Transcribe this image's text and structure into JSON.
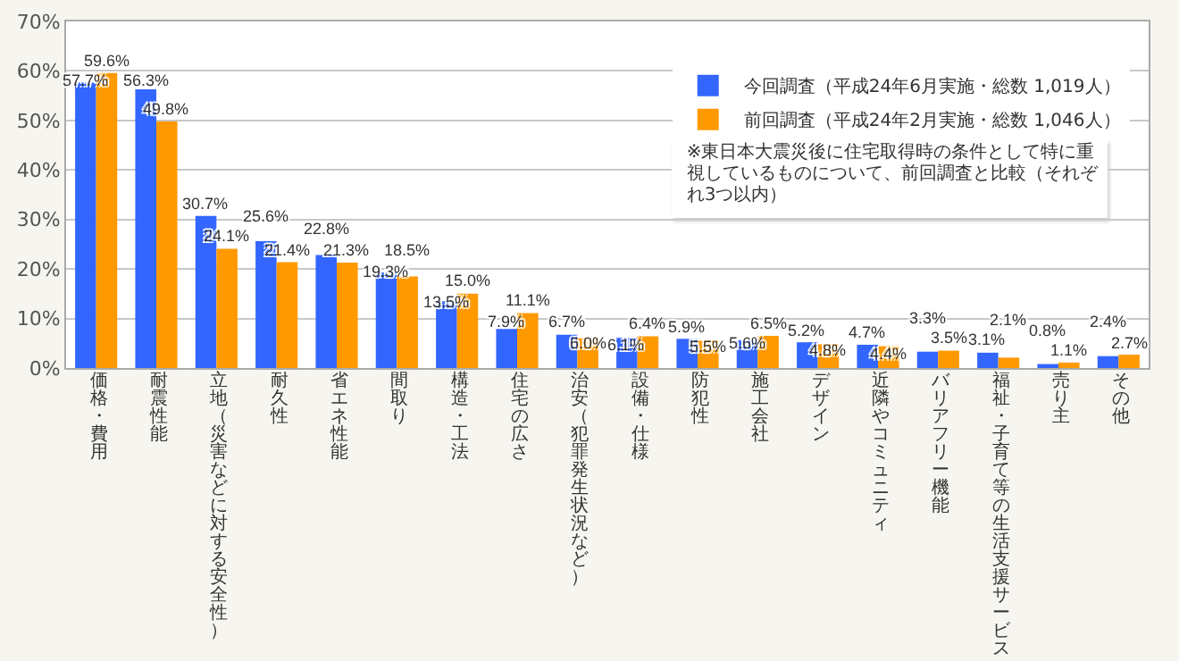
{
  "chart_data": {
    "type": "bar",
    "categories": [
      "価格・費用",
      "耐震性能",
      "立地（災害などに対する安全性）",
      "耐久性",
      "省エネ性能",
      "間取り",
      "構造・工法",
      "住宅の広さ",
      "治安（犯罪発生状況など）",
      "設備・仕様",
      "防犯性",
      "施工会社",
      "デザイン",
      "近隣やコミュニティ",
      "バリアフリー機能",
      "福祉・子育て等の生活支援サービス",
      "売り主",
      "その他"
    ],
    "series": [
      {
        "name": "今回調査（平成24年6月実施・総数 1,019人）",
        "color": "#3366ff",
        "values": [
          57.7,
          56.3,
          30.7,
          25.6,
          22.8,
          19.3,
          13.5,
          7.9,
          6.7,
          6.1,
          5.9,
          5.6,
          5.2,
          4.7,
          3.3,
          3.1,
          0.8,
          2.4
        ],
        "value_labels": [
          "57.7%",
          "56.3%",
          "30.7%",
          "25.6%",
          "22.8%",
          "19.3%",
          "13.5%",
          "7.9%",
          "6.7%",
          "6.1%",
          "5.9%",
          "5.6%",
          "5.2%",
          "4.7%",
          "3.3%",
          "3.1%",
          "0.8%",
          "2.4%"
        ]
      },
      {
        "name": "前回調査（平成24年2月実施・総数 1,046人）",
        "color": "#ff9900",
        "values": [
          59.6,
          49.8,
          24.1,
          21.4,
          21.3,
          18.5,
          15.0,
          11.1,
          6.0,
          6.4,
          5.5,
          6.5,
          4.8,
          4.4,
          3.5,
          2.1,
          1.1,
          2.7
        ],
        "value_labels": [
          "59.6%",
          "49.8%",
          "24.1%",
          "21.4%",
          "21.3%",
          "18.5%",
          "15.0%",
          "11.1%",
          "6.0%",
          "6.4%",
          "5.5%",
          "6.5%",
          "4.8%",
          "4.4%",
          "3.5%",
          "2.1%",
          "1.1%",
          "2.7%"
        ]
      }
    ],
    "ylim": [
      0,
      70
    ],
    "yticks": [
      {
        "value": 0,
        "label": "0%"
      },
      {
        "value": 10,
        "label": "10%"
      },
      {
        "value": 20,
        "label": "20%"
      },
      {
        "value": 30,
        "label": "30%"
      },
      {
        "value": 40,
        "label": "40%"
      },
      {
        "value": 50,
        "label": "50%"
      },
      {
        "value": 60,
        "label": "60%"
      },
      {
        "value": 70,
        "label": "70%"
      }
    ],
    "grid": "y",
    "legend": "top right",
    "annotations": [
      "※東日本大震災後に住宅取得時の条件として特に重視しているものについて、前回調査と比較（それぞれ3つ以内）"
    ]
  }
}
